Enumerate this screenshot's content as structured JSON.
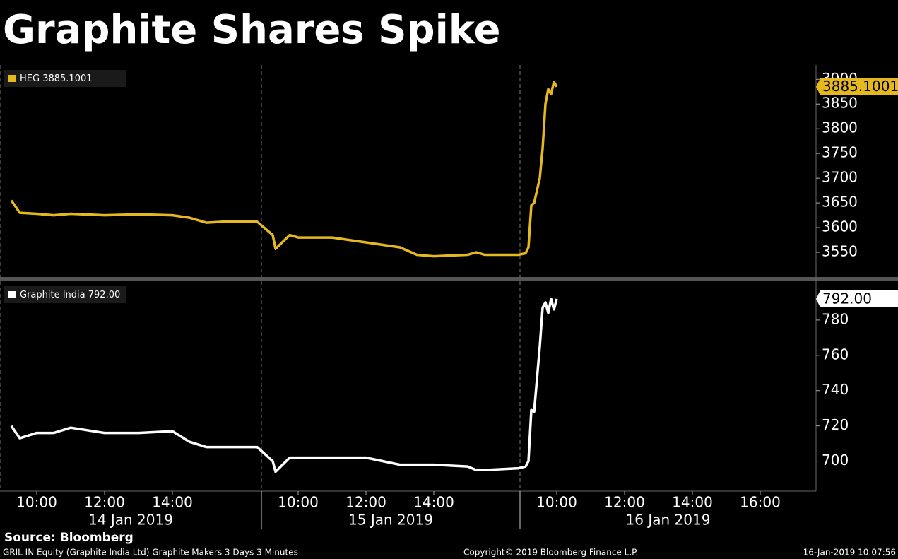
{
  "chart_data": [
    {
      "type": "line",
      "title": "Graphite Shares Spike",
      "x": [
        "14 Jan 2019 09:15",
        "14 Jan 2019 09:30",
        "14 Jan 2019 10:00",
        "14 Jan 2019 10:30",
        "14 Jan 2019 11:00",
        "14 Jan 2019 12:00",
        "14 Jan 2019 13:00",
        "14 Jan 2019 14:00",
        "14 Jan 2019 14:30",
        "14 Jan 2019 15:00",
        "14 Jan 2019 15:30",
        "14 Jan 2019 16:30",
        "15 Jan 2019 09:15",
        "15 Jan 2019 09:20",
        "15 Jan 2019 09:45",
        "15 Jan 2019 10:00",
        "15 Jan 2019 11:00",
        "15 Jan 2019 12:00",
        "15 Jan 2019 13:00",
        "15 Jan 2019 13:30",
        "15 Jan 2019 14:00",
        "15 Jan 2019 15:00",
        "15 Jan 2019 15:15",
        "15 Jan 2019 15:30",
        "15 Jan 2019 16:30",
        "16 Jan 2019 09:05",
        "16 Jan 2019 09:10",
        "16 Jan 2019 09:15",
        "16 Jan 2019 09:20",
        "16 Jan 2019 09:30",
        "16 Jan 2019 09:35",
        "16 Jan 2019 09:40",
        "16 Jan 2019 09:45",
        "16 Jan 2019 09:50",
        "16 Jan 2019 09:55",
        "16 Jan 2019 10:00"
      ],
      "series": [
        {
          "name": "HEG",
          "last_label": "3885.1001",
          "color": "#e6b820",
          "values": [
            3655,
            3630,
            3628,
            3625,
            3628,
            3625,
            3627,
            3625,
            3620,
            3610,
            3612,
            3612,
            3585,
            3557,
            3585,
            3580,
            3580,
            3570,
            3560,
            3545,
            3542,
            3545,
            3550,
            3545,
            3545,
            3548,
            3560,
            3645,
            3650,
            3700,
            3760,
            3850,
            3880,
            3870,
            3895,
            3885.1001
          ]
        }
      ],
      "ylim": [
        3500,
        3929
      ],
      "yticks": [
        3550,
        3600,
        3650,
        3700,
        3750,
        3800,
        3850,
        3900
      ]
    },
    {
      "type": "line",
      "x": [
        "14 Jan 2019 09:15",
        "14 Jan 2019 09:30",
        "14 Jan 2019 10:00",
        "14 Jan 2019 10:30",
        "14 Jan 2019 11:00",
        "14 Jan 2019 12:00",
        "14 Jan 2019 13:00",
        "14 Jan 2019 14:00",
        "14 Jan 2019 14:30",
        "14 Jan 2019 15:00",
        "14 Jan 2019 15:30",
        "14 Jan 2019 16:30",
        "15 Jan 2019 09:15",
        "15 Jan 2019 09:20",
        "15 Jan 2019 09:45",
        "15 Jan 2019 10:00",
        "15 Jan 2019 11:00",
        "15 Jan 2019 12:00",
        "15 Jan 2019 13:00",
        "15 Jan 2019 13:30",
        "15 Jan 2019 14:00",
        "15 Jan 2019 15:00",
        "15 Jan 2019 15:15",
        "15 Jan 2019 15:30",
        "15 Jan 2019 16:30",
        "16 Jan 2019 09:05",
        "16 Jan 2019 09:10",
        "16 Jan 2019 09:15",
        "16 Jan 2019 09:20",
        "16 Jan 2019 09:30",
        "16 Jan 2019 09:35",
        "16 Jan 2019 09:40",
        "16 Jan 2019 09:45",
        "16 Jan 2019 09:50",
        "16 Jan 2019 09:55",
        "16 Jan 2019 10:00"
      ],
      "series": [
        {
          "name": "Graphite India",
          "last_label": "792.00",
          "color": "#ffffff",
          "values": [
            720,
            713,
            716,
            716,
            719,
            716,
            716,
            717,
            711,
            708,
            708,
            708,
            700,
            694,
            702,
            702,
            702,
            702,
            698,
            698,
            698,
            697,
            695,
            695,
            696,
            697,
            700,
            729,
            728,
            765,
            787,
            790,
            784,
            792,
            786,
            792
          ]
        }
      ],
      "ylim": [
        683,
        802
      ],
      "yticks": [
        700,
        720,
        740,
        760,
        780
      ],
      "days": [
        "14 Jan 2019",
        "15 Jan 2019",
        "16 Jan 2019"
      ],
      "xticks": [
        {
          "value": "14 Jan 2019 10:00",
          "label": "10:00"
        },
        {
          "value": "14 Jan 2019 12:00",
          "label": "12:00"
        },
        {
          "value": "14 Jan 2019 14:00",
          "label": "14:00"
        },
        {
          "value": "15 Jan 2019 10:00",
          "label": "10:00"
        },
        {
          "value": "15 Jan 2019 12:00",
          "label": "12:00"
        },
        {
          "value": "15 Jan 2019 14:00",
          "label": "14:00"
        },
        {
          "value": "16 Jan 2019 10:00",
          "label": "10:00"
        },
        {
          "value": "16 Jan 2019 12:00",
          "label": "12:00"
        },
        {
          "value": "16 Jan 2019 14:00",
          "label": "14:00"
        },
        {
          "value": "16 Jan 2019 16:00",
          "label": "16:00"
        }
      ],
      "source": "Source: Bloomberg",
      "footnote": "GRIL IN Equity (Graphite India Ltd) Graphite Makers 3 Days 3 Minutes",
      "copyright": "Copyright© 2019 Bloomberg Finance L.P.",
      "timestamp": "16-Jan-2019 10:07:56"
    }
  ]
}
